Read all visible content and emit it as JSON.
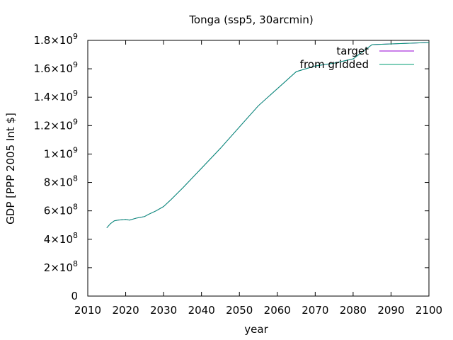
{
  "chart_data": {
    "type": "line",
    "title": "Tonga (ssp5, 30arcmin)",
    "xlabel": "year",
    "ylabel": "GDP [PPP 2005 Int $]",
    "xlim": [
      2010,
      2100
    ],
    "ylim": [
      0,
      1800000000
    ],
    "xticks": [
      2010,
      2020,
      2030,
      2040,
      2050,
      2060,
      2070,
      2080,
      2090,
      2100
    ],
    "yticks": [
      {
        "value": 0,
        "mantissa": "0",
        "exp": ""
      },
      {
        "value": 200000000,
        "mantissa": "2×10",
        "exp": "8"
      },
      {
        "value": 400000000,
        "mantissa": "4×10",
        "exp": "8"
      },
      {
        "value": 600000000,
        "mantissa": "6×10",
        "exp": "8"
      },
      {
        "value": 800000000,
        "mantissa": "8×10",
        "exp": "8"
      },
      {
        "value": 1000000000,
        "mantissa": "1×10",
        "exp": "9"
      },
      {
        "value": 1200000000,
        "mantissa": "1.2×10",
        "exp": "9"
      },
      {
        "value": 1400000000,
        "mantissa": "1.4×10",
        "exp": "9"
      },
      {
        "value": 1600000000,
        "mantissa": "1.6×10",
        "exp": "9"
      },
      {
        "value": 1800000000,
        "mantissa": "1.8×10",
        "exp": "9"
      }
    ],
    "grid": false,
    "legend": "top-right",
    "series": [
      {
        "name": "target",
        "color": "#9400d3",
        "x": [
          2015,
          2016,
          2017,
          2018,
          2020,
          2021,
          2023,
          2025,
          2026,
          2028,
          2030,
          2032,
          2035,
          2040,
          2045,
          2050,
          2055,
          2060,
          2065,
          2070,
          2075,
          2080,
          2085,
          2090,
          2095,
          2100
        ],
        "y": [
          480000000,
          510000000,
          530000000,
          535000000,
          540000000,
          535000000,
          550000000,
          560000000,
          575000000,
          600000000,
          630000000,
          680000000,
          760000000,
          900000000,
          1040000000,
          1190000000,
          1340000000,
          1460000000,
          1580000000,
          1620000000,
          1640000000,
          1670000000,
          1770000000,
          1775000000,
          1780000000,
          1785000000
        ]
      },
      {
        "name": "from gridded",
        "color": "#009e73",
        "x": [
          2015,
          2016,
          2017,
          2018,
          2020,
          2021,
          2023,
          2025,
          2026,
          2028,
          2030,
          2032,
          2035,
          2040,
          2045,
          2050,
          2055,
          2060,
          2065,
          2070,
          2075,
          2080,
          2085,
          2090,
          2095,
          2100
        ],
        "y": [
          480000000,
          510000000,
          530000000,
          535000000,
          540000000,
          535000000,
          550000000,
          560000000,
          575000000,
          600000000,
          630000000,
          680000000,
          760000000,
          900000000,
          1040000000,
          1190000000,
          1340000000,
          1460000000,
          1580000000,
          1620000000,
          1640000000,
          1670000000,
          1770000000,
          1775000000,
          1780000000,
          1785000000
        ]
      }
    ]
  }
}
